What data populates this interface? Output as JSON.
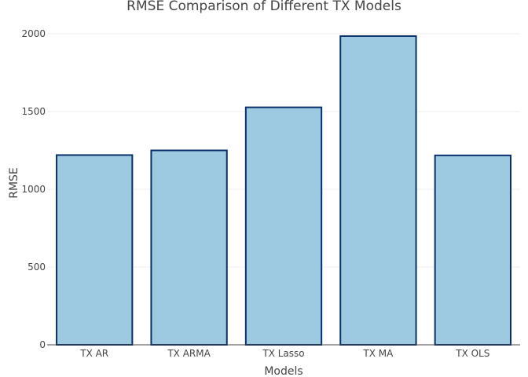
{
  "chart_data": {
    "type": "bar",
    "title": "RMSE Comparison of Different TX Models",
    "xlabel": "Models",
    "ylabel": "RMSE",
    "categories": [
      "TX AR",
      "TX ARMA",
      "TX Lasso",
      "TX MA",
      "TX OLS"
    ],
    "values": [
      1220,
      1250,
      1527,
      1985,
      1218
    ],
    "ylim": [
      0,
      2000
    ],
    "yticks": [
      0,
      500,
      1000,
      1500,
      2000
    ],
    "ytick_labels": [
      "0",
      "500",
      "1000",
      "1500",
      "2000"
    ],
    "grid": true,
    "bar_color": "#9ecae1",
    "bar_edge_color": "#08306b"
  }
}
